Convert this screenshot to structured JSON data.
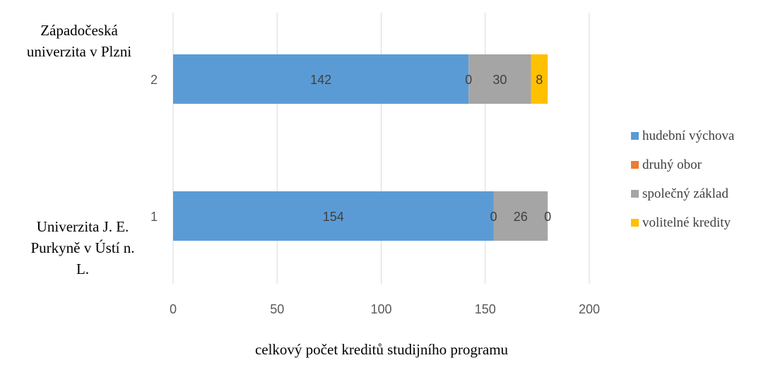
{
  "chart_data": {
    "type": "bar",
    "orientation": "horizontal",
    "stacked": true,
    "categories": [
      "1",
      "2"
    ],
    "category_labels": [
      "Univerzita J. E. Purkyně v Ústí n. L.",
      "Západočeská univerzita v Plzni"
    ],
    "series": [
      {
        "name": "hudební výchova",
        "color": "#5b9bd5",
        "values": [
          154,
          142
        ]
      },
      {
        "name": "druhý obor",
        "color": "#ed7d31",
        "values": [
          0,
          0
        ]
      },
      {
        "name": "společný základ",
        "color": "#a5a5a5",
        "values": [
          26,
          30
        ]
      },
      {
        "name": "volitelné kredity",
        "color": "#ffc000",
        "values": [
          0,
          8
        ]
      }
    ],
    "xlabel": "celkový počet kreditů studijního programu",
    "ylabel": "",
    "xlim": [
      0,
      200
    ],
    "xticks": [
      0,
      50,
      100,
      150,
      200
    ],
    "grid": true,
    "legend_position": "right"
  }
}
